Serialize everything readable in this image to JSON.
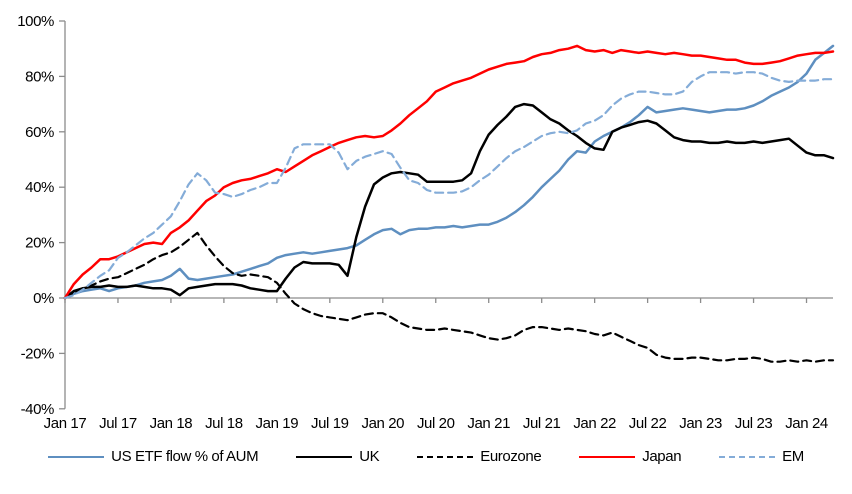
{
  "figure": {
    "background": "#ffffff",
    "axis_color": "#8c8c8c"
  },
  "chart_data": {
    "type": "line",
    "title": "",
    "xlabel": "",
    "ylabel": "",
    "x_axis": {
      "tick_labels": [
        "Jan 17",
        "Jul 17",
        "Jan 18",
        "Jul 18",
        "Jan 19",
        "Jul 19",
        "Jan 20",
        "Jul 20",
        "Jan 21",
        "Jul 21",
        "Jan 22",
        "Jul 22",
        "Jan 23",
        "Jul 23",
        "Jan 24"
      ],
      "x_start": "Jan 2017",
      "x_end": "Apr 2024",
      "frequency": "monthly"
    },
    "y_axis": {
      "tick_labels": [
        "100%",
        "80%",
        "60%",
        "40%",
        "20%",
        "0%",
        "-20%",
        "-40%"
      ],
      "min": -40,
      "max": 100,
      "unit": "%",
      "grid": false
    },
    "legend_position": "bottom",
    "series": [
      {
        "name": "US ETF flow % of AUM",
        "color": "#5E8FC0",
        "style": "solid",
        "values": [
          0,
          1.5,
          2.5,
          3,
          3.5,
          2.5,
          3.5,
          4,
          4.5,
          5.5,
          6,
          6.5,
          8,
          10.5,
          7,
          6.5,
          7,
          7.5,
          8,
          8.5,
          9.5,
          10.5,
          11.5,
          12.5,
          14.5,
          15.5,
          16,
          16.5,
          16,
          16.5,
          17,
          17.5,
          18,
          19,
          21,
          23,
          24.5,
          25,
          23,
          24.5,
          25,
          25,
          25.5,
          25.5,
          26,
          25.5,
          26,
          26.5,
          26.5,
          27.5,
          29,
          31,
          33.5,
          36.5,
          40,
          43,
          46,
          50,
          53,
          52.5,
          56.5,
          58.5,
          60,
          61.5,
          63.5,
          66,
          69,
          67,
          67.5,
          68,
          68.5,
          68,
          67.5,
          67,
          67.5,
          68,
          68,
          68.5,
          69.5,
          71,
          73,
          74.5,
          76,
          78,
          81,
          86,
          88.5,
          91
        ]
      },
      {
        "name": "UK",
        "color": "#000000",
        "style": "solid",
        "values": [
          0,
          2.5,
          3.5,
          4,
          4,
          4.5,
          4,
          4,
          4.5,
          4,
          3.5,
          3.5,
          3,
          1,
          3.5,
          4,
          4.5,
          5,
          5,
          5,
          4.5,
          3.5,
          3,
          2.5,
          2.5,
          7,
          11,
          13,
          12.5,
          12.5,
          12.5,
          12,
          8,
          22,
          33,
          41,
          43.5,
          45,
          45.5,
          45,
          44.5,
          42,
          42,
          42,
          42,
          42.5,
          45,
          53,
          59,
          62.5,
          65.5,
          69,
          70,
          69.5,
          67,
          64.5,
          63,
          60.5,
          58.5,
          56,
          54,
          53.5,
          60,
          61.5,
          62.5,
          63.5,
          64,
          63,
          60.5,
          58,
          57,
          56.5,
          56.5,
          56,
          56,
          56.5,
          56,
          56,
          56.5,
          56,
          56.5,
          57,
          57.5,
          55,
          52.5,
          51.5,
          51.5,
          50.5
        ]
      },
      {
        "name": "Eurozone",
        "color": "#000000",
        "style": "dashed",
        "values": [
          0,
          2,
          3.5,
          4.5,
          6,
          7,
          7.5,
          9,
          10.5,
          12,
          14,
          15.5,
          16.5,
          18.5,
          21,
          23.5,
          19,
          15,
          11.5,
          9,
          8,
          8.5,
          8,
          7.5,
          5.5,
          1.5,
          -2,
          -4,
          -5.5,
          -6.5,
          -7,
          -7.5,
          -8,
          -7,
          -6,
          -5.5,
          -5.5,
          -7,
          -9,
          -10.5,
          -11,
          -11.5,
          -11.5,
          -11,
          -11.5,
          -12,
          -12.5,
          -13.5,
          -14.5,
          -15,
          -14.5,
          -13.5,
          -11.5,
          -10.5,
          -10.5,
          -11,
          -11.5,
          -11,
          -11.5,
          -12,
          -13,
          -13.5,
          -12.5,
          -14,
          -15.5,
          -17,
          -18,
          -20.5,
          -21.5,
          -22,
          -22,
          -21.5,
          -21.5,
          -22,
          -22.5,
          -22.5,
          -22,
          -22,
          -21.5,
          -22,
          -23,
          -23,
          -22.5,
          -23,
          -22.5,
          -23,
          -22.5,
          -22.5
        ]
      },
      {
        "name": "Japan",
        "color": "#FF0000",
        "style": "solid",
        "values": [
          0,
          5,
          8.5,
          11,
          14,
          14,
          15,
          16.5,
          18,
          19.5,
          20,
          19.5,
          23.5,
          25.5,
          28,
          31.5,
          35,
          37,
          40,
          41.5,
          42.5,
          43,
          44,
          45,
          46.5,
          45.5,
          47.5,
          49.5,
          51.5,
          53,
          54.5,
          56,
          57,
          58,
          58.5,
          58,
          58.5,
          60.5,
          63,
          66,
          68.5,
          71,
          74.5,
          76,
          77.5,
          78.5,
          79.5,
          81,
          82.5,
          83.5,
          84.5,
          85,
          85.5,
          87,
          88,
          88.5,
          89.5,
          90,
          91,
          89.5,
          89,
          89.5,
          88.5,
          89.5,
          89,
          88.5,
          89,
          88.5,
          88,
          88.5,
          88,
          87.5,
          87.5,
          87,
          86.5,
          86,
          86,
          85,
          84.5,
          84.5,
          85,
          85.5,
          86.5,
          87.5,
          88,
          88.5,
          88.5,
          89
        ]
      },
      {
        "name": "EM",
        "color": "#84ACD8",
        "style": "dashed",
        "values": [
          0,
          1,
          3,
          5.5,
          8,
          10,
          14.5,
          16.5,
          19,
          21.5,
          23.5,
          26.5,
          29.5,
          35,
          41,
          45,
          42.5,
          38,
          37.5,
          36.5,
          37.5,
          39,
          40,
          41.5,
          41.5,
          47,
          54,
          55.5,
          55.5,
          55.5,
          55.5,
          52.5,
          46.5,
          49.5,
          51,
          52,
          53,
          52,
          47,
          42.5,
          41.5,
          39,
          38,
          38,
          38,
          38.5,
          40,
          42.5,
          44.5,
          47.5,
          50.5,
          53,
          54.5,
          56.5,
          58.5,
          59.5,
          60,
          59.5,
          60.5,
          63,
          64,
          66,
          69.5,
          72,
          73.5,
          74.5,
          74.5,
          74,
          73.5,
          73.5,
          74.5,
          78,
          80,
          81.5,
          81.5,
          81.5,
          81,
          81.5,
          81.5,
          81,
          79.5,
          78.5,
          78,
          78.5,
          78.5,
          78.5,
          79,
          79
        ]
      }
    ]
  }
}
